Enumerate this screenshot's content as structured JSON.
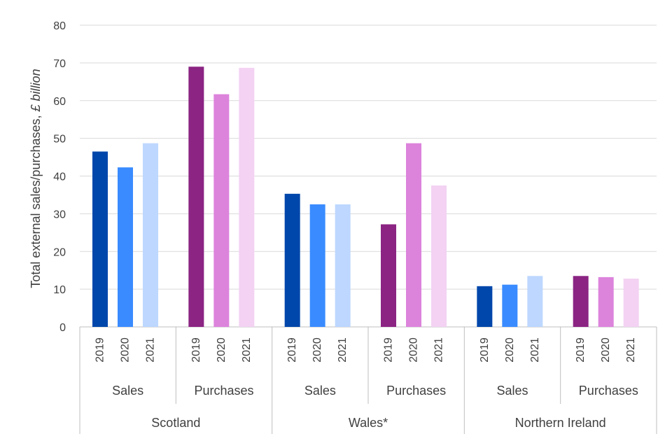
{
  "chart_data": {
    "type": "bar",
    "ylabel": "Total external sales/purchases,",
    "ylabel_unit": "£ billion",
    "ylim": [
      0,
      80
    ],
    "yticks": [
      "0",
      "10",
      "20",
      "30",
      "40",
      "50",
      "60",
      "70",
      "80"
    ],
    "grid": true,
    "colors": {
      "Sales": [
        "#0047ab",
        "#3a8bff",
        "#bdd7ff"
      ],
      "Purchases": [
        "#8b2483",
        "#dc83dc",
        "#f3d2f3"
      ]
    },
    "groups": [
      {
        "name": "Scotland",
        "subgroups": [
          {
            "name": "Sales",
            "years": [
              "2019",
              "2020",
              "2021"
            ],
            "values": [
              46.5,
              42.3,
              48.7
            ]
          },
          {
            "name": "Purchases",
            "years": [
              "2019",
              "2020",
              "2021"
            ],
            "values": [
              69.0,
              61.7,
              68.7
            ]
          }
        ]
      },
      {
        "name": "Wales*",
        "subgroups": [
          {
            "name": "Sales",
            "years": [
              "2019",
              "2020",
              "2021"
            ],
            "values": [
              35.3,
              32.5,
              32.5
            ]
          },
          {
            "name": "Purchases",
            "years": [
              "2019",
              "2020",
              "2021"
            ],
            "values": [
              27.2,
              48.7,
              37.5
            ]
          }
        ]
      },
      {
        "name": "Northern Ireland",
        "subgroups": [
          {
            "name": "Sales",
            "years": [
              "2019",
              "2020",
              "2021"
            ],
            "values": [
              10.8,
              11.2,
              13.5
            ]
          },
          {
            "name": "Purchases",
            "years": [
              "2019",
              "2020",
              "2021"
            ],
            "values": [
              13.5,
              13.2,
              12.8
            ]
          }
        ]
      }
    ]
  }
}
